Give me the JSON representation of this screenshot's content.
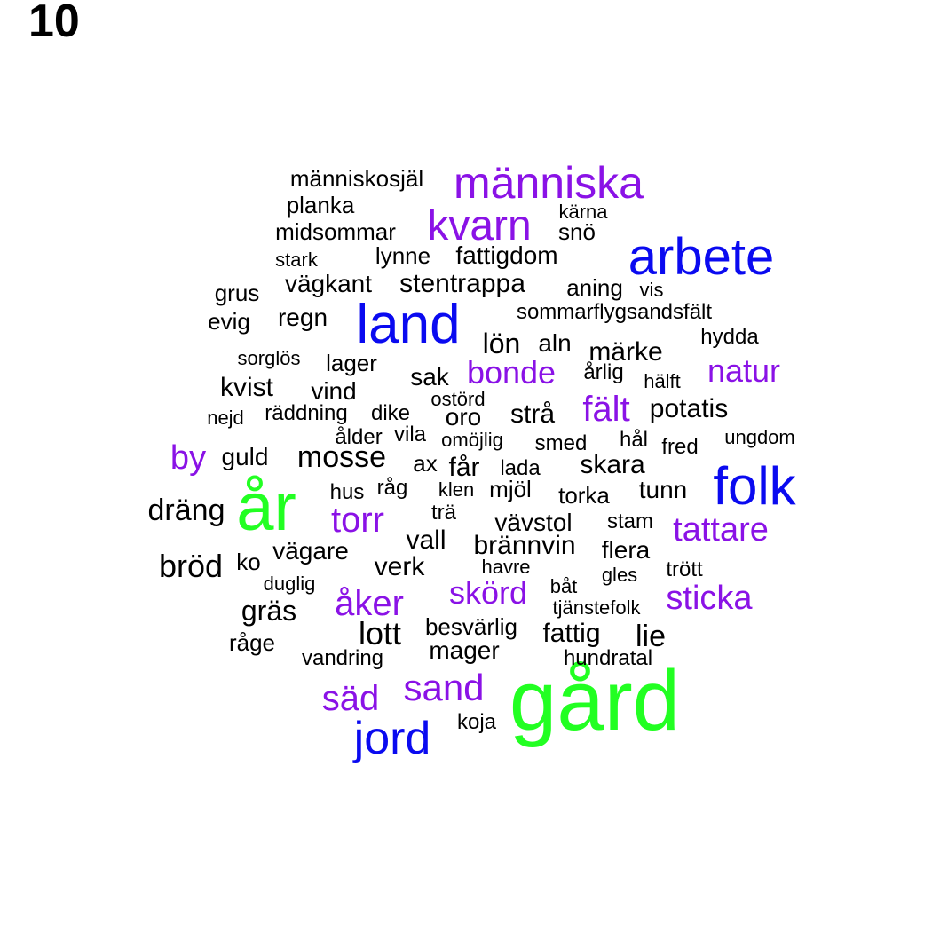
{
  "label": "10",
  "colors": {
    "green": "#22ff22",
    "blue": "#0a0af0",
    "purple": "#8a12e6",
    "black": "#000000"
  },
  "words": [
    {
      "text": "gård",
      "color": "green"
    },
    {
      "text": "år",
      "color": "green"
    },
    {
      "text": "arbete",
      "color": "blue"
    },
    {
      "text": "land",
      "color": "blue"
    },
    {
      "text": "folk",
      "color": "blue"
    },
    {
      "text": "jord",
      "color": "blue"
    },
    {
      "text": "människa",
      "color": "purple"
    },
    {
      "text": "kvarn",
      "color": "purple"
    },
    {
      "text": "bonde",
      "color": "purple"
    },
    {
      "text": "natur",
      "color": "purple"
    },
    {
      "text": "fält",
      "color": "purple"
    },
    {
      "text": "by",
      "color": "purple"
    },
    {
      "text": "torr",
      "color": "purple"
    },
    {
      "text": "tattare",
      "color": "purple"
    },
    {
      "text": "åker",
      "color": "purple"
    },
    {
      "text": "skörd",
      "color": "purple"
    },
    {
      "text": "sticka",
      "color": "purple"
    },
    {
      "text": "säd",
      "color": "purple"
    },
    {
      "text": "sand",
      "color": "purple"
    },
    {
      "text": "människosjäl",
      "color": "black"
    },
    {
      "text": "planka",
      "color": "black"
    },
    {
      "text": "kärna",
      "color": "black"
    },
    {
      "text": "midsommar",
      "color": "black"
    },
    {
      "text": "snö",
      "color": "black"
    },
    {
      "text": "stark",
      "color": "black"
    },
    {
      "text": "lynne",
      "color": "black"
    },
    {
      "text": "fattigdom",
      "color": "black"
    },
    {
      "text": "vägkant",
      "color": "black"
    },
    {
      "text": "stentrappa",
      "color": "black"
    },
    {
      "text": "aning",
      "color": "black"
    },
    {
      "text": "vis",
      "color": "black"
    },
    {
      "text": "grus",
      "color": "black"
    },
    {
      "text": "evig",
      "color": "black"
    },
    {
      "text": "regn",
      "color": "black"
    },
    {
      "text": "sommarflygsandsfält",
      "color": "black"
    },
    {
      "text": "hydda",
      "color": "black"
    },
    {
      "text": "lön",
      "color": "black"
    },
    {
      "text": "aln",
      "color": "black"
    },
    {
      "text": "märke",
      "color": "black"
    },
    {
      "text": "sorglös",
      "color": "black"
    },
    {
      "text": "lager",
      "color": "black"
    },
    {
      "text": "sak",
      "color": "black"
    },
    {
      "text": "årlig",
      "color": "black"
    },
    {
      "text": "hälft",
      "color": "black"
    },
    {
      "text": "kvist",
      "color": "black"
    },
    {
      "text": "vind",
      "color": "black"
    },
    {
      "text": "ostörd",
      "color": "black"
    },
    {
      "text": "nejd",
      "color": "black"
    },
    {
      "text": "räddning",
      "color": "black"
    },
    {
      "text": "dike",
      "color": "black"
    },
    {
      "text": "oro",
      "color": "black"
    },
    {
      "text": "strå",
      "color": "black"
    },
    {
      "text": "potatis",
      "color": "black"
    },
    {
      "text": "ålder",
      "color": "black"
    },
    {
      "text": "vila",
      "color": "black"
    },
    {
      "text": "omöjlig",
      "color": "black"
    },
    {
      "text": "smed",
      "color": "black"
    },
    {
      "text": "hål",
      "color": "black"
    },
    {
      "text": "fred",
      "color": "black"
    },
    {
      "text": "ungdom",
      "color": "black"
    },
    {
      "text": "guld",
      "color": "black"
    },
    {
      "text": "mosse",
      "color": "black"
    },
    {
      "text": "ax",
      "color": "black"
    },
    {
      "text": "får",
      "color": "black"
    },
    {
      "text": "lada",
      "color": "black"
    },
    {
      "text": "skara",
      "color": "black"
    },
    {
      "text": "hus",
      "color": "black"
    },
    {
      "text": "råg",
      "color": "black"
    },
    {
      "text": "klen",
      "color": "black"
    },
    {
      "text": "mjöl",
      "color": "black"
    },
    {
      "text": "torka",
      "color": "black"
    },
    {
      "text": "tunn",
      "color": "black"
    },
    {
      "text": "dräng",
      "color": "black"
    },
    {
      "text": "trä",
      "color": "black"
    },
    {
      "text": "vävstol",
      "color": "black"
    },
    {
      "text": "stam",
      "color": "black"
    },
    {
      "text": "vall",
      "color": "black"
    },
    {
      "text": "brännvin",
      "color": "black"
    },
    {
      "text": "flera",
      "color": "black"
    },
    {
      "text": "bröd",
      "color": "black"
    },
    {
      "text": "ko",
      "color": "black"
    },
    {
      "text": "vägare",
      "color": "black"
    },
    {
      "text": "verk",
      "color": "black"
    },
    {
      "text": "havre",
      "color": "black"
    },
    {
      "text": "trött",
      "color": "black"
    },
    {
      "text": "duglig",
      "color": "black"
    },
    {
      "text": "gles",
      "color": "black"
    },
    {
      "text": "båt",
      "color": "black"
    },
    {
      "text": "gräs",
      "color": "black"
    },
    {
      "text": "tjänstefolk",
      "color": "black"
    },
    {
      "text": "lott",
      "color": "black"
    },
    {
      "text": "besvärlig",
      "color": "black"
    },
    {
      "text": "fattig",
      "color": "black"
    },
    {
      "text": "lie",
      "color": "black"
    },
    {
      "text": "råge",
      "color": "black"
    },
    {
      "text": "vandring",
      "color": "black"
    },
    {
      "text": "mager",
      "color": "black"
    },
    {
      "text": "hundratal",
      "color": "black"
    },
    {
      "text": "koja",
      "color": "black"
    }
  ]
}
